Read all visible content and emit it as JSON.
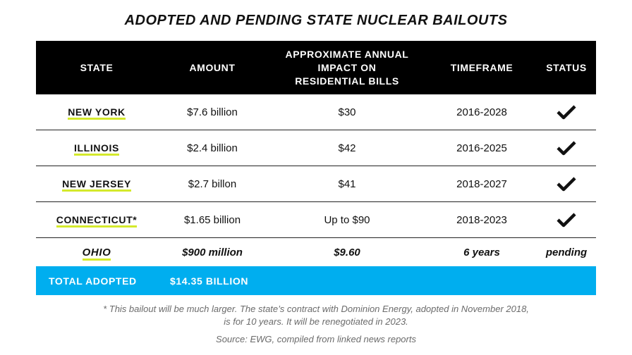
{
  "title": "ADOPTED AND PENDING STATE NUCLEAR BAILOUTS",
  "headers": {
    "state": "STATE",
    "amount": "AMOUNT",
    "impact_line1": "APPROXIMATE ANNUAL",
    "impact_line2": "IMPACT ON",
    "impact_line3": "RESIDENTIAL BILLS",
    "timeframe": "TIMEFRAME",
    "status": "STATUS"
  },
  "rows": [
    {
      "state": "NEW YORK",
      "amount": "$7.6 billion",
      "impact": "$30",
      "timeframe": "2016-2028",
      "status_icon": "checkmark-icon"
    },
    {
      "state": "ILLINOIS",
      "amount": "$2.4 billion",
      "impact": "$42",
      "timeframe": "2016-2025",
      "status_icon": "checkmark-icon"
    },
    {
      "state": "NEW JERSEY",
      "amount": "$2.7 billon",
      "impact": "$41",
      "timeframe": "2018-2027",
      "status_icon": "checkmark-icon"
    },
    {
      "state": "CONNECTICUT*",
      "amount": "$1.65 billion",
      "impact": "Up to $90",
      "timeframe": "2018-2023",
      "status_icon": "checkmark-icon"
    }
  ],
  "pending_row": {
    "state": "OHIO",
    "amount": "$900 million",
    "impact": "$9.60",
    "timeframe": "6 years",
    "status": "pending"
  },
  "total": {
    "label": "TOTAL ADOPTED",
    "amount": "$14.35 BILLION"
  },
  "footnote_line1": "* This bailout will be much larger. The state’s contract with Dominion Energy, adopted in November 2018,",
  "footnote_line2": "is for 10 years. It will be renegotiated in 2023.",
  "source": "Source: EWG, compiled from linked news reports",
  "colors": {
    "header_bg": "#000000",
    "total_bg": "#00aeef",
    "underline": "#d4e92b"
  }
}
